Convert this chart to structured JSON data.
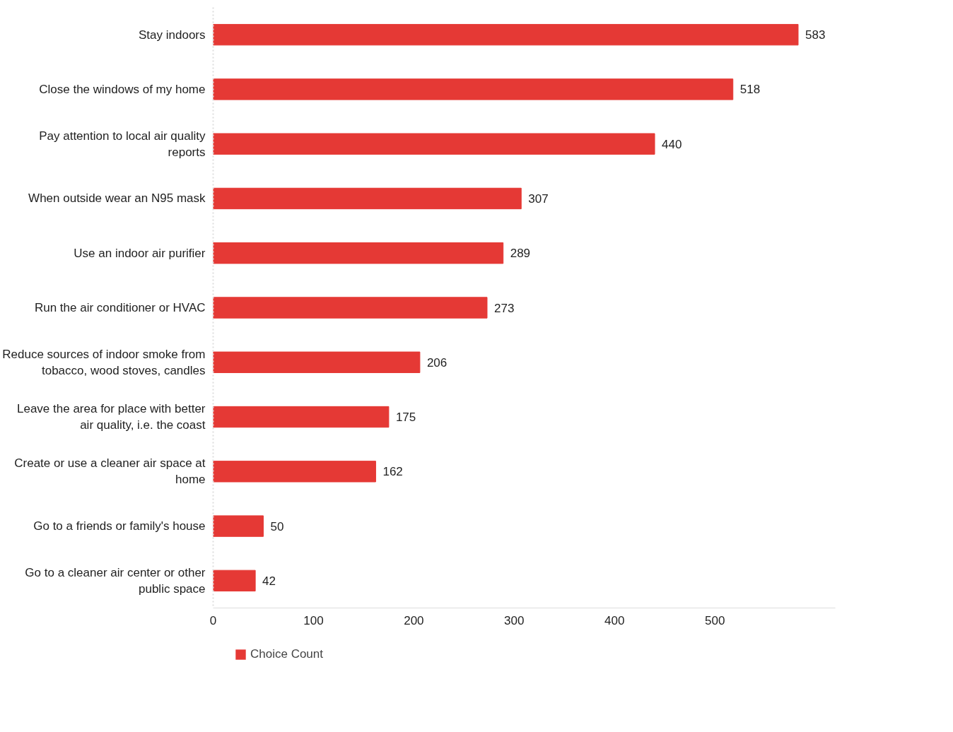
{
  "chart_data": {
    "type": "bar",
    "orientation": "horizontal",
    "categories": [
      "Stay indoors",
      "Close the windows of my home",
      "Pay attention to local air quality reports",
      "When outside wear an N95 mask",
      "Use an indoor air purifier",
      "Run the air conditioner or HVAC",
      "Reduce sources of indoor smoke from tobacco, wood stoves, candles",
      "Leave the area for place with better air quality, i.e. the coast",
      "Create or use a cleaner air space at home",
      "Go to a friends or family's house",
      "Go to a cleaner air center or other public space"
    ],
    "series": [
      {
        "name": "Choice Count",
        "color": "#e53935",
        "values": [
          583,
          518,
          440,
          307,
          289,
          273,
          206,
          175,
          162,
          50,
          42
        ]
      }
    ],
    "xlim": [
      0,
      620
    ],
    "xticks": [
      0,
      100,
      200,
      300,
      400,
      500
    ],
    "data_labels": true,
    "grid": false,
    "legend": "bottom left"
  }
}
